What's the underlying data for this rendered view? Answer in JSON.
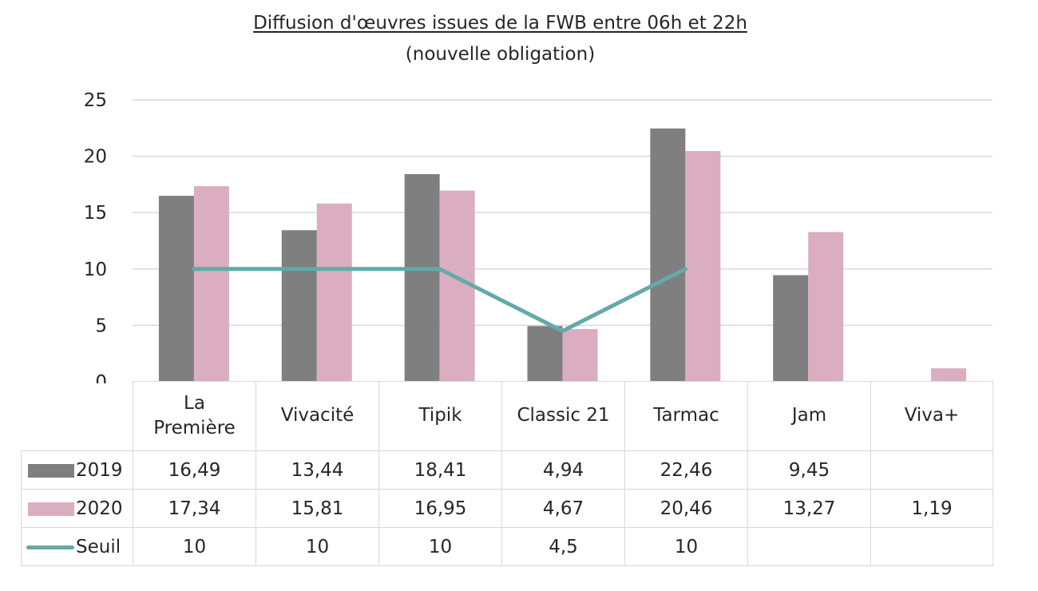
{
  "chart_data": {
    "type": "bar",
    "title": "Diffusion d'œuvres issues de la FWB entre 06h et 22h",
    "subtitle": "(nouvelle obligation)",
    "xlabel": "",
    "ylabel": "",
    "ylim": [
      0,
      25
    ],
    "yticks": [
      "0",
      "5",
      "10",
      "15",
      "20",
      "25"
    ],
    "grid": true,
    "legend": "data-table",
    "categories": [
      "La Première",
      "Vivacité",
      "Tipik",
      "Classic 21",
      "Tarmac",
      "Jam",
      "Viva+"
    ],
    "category_lines": [
      [
        "La",
        "Première"
      ],
      [
        "Vivacité"
      ],
      [
        "Tipik"
      ],
      [
        "Classic 21"
      ],
      [
        "Tarmac"
      ],
      [
        "Jam"
      ],
      [
        "Viva+"
      ]
    ],
    "series": [
      {
        "name": "2019",
        "type": "bar",
        "color": "#7f7f7f",
        "values": [
          16.49,
          13.44,
          18.41,
          4.94,
          22.46,
          9.45,
          null
        ],
        "labels": [
          "16,49",
          "13,44",
          "18,41",
          "4,94",
          "22,46",
          "9,45",
          ""
        ]
      },
      {
        "name": "2020",
        "type": "bar",
        "color": "#dbadc0",
        "values": [
          17.34,
          15.81,
          16.95,
          4.67,
          20.46,
          13.27,
          1.19
        ],
        "labels": [
          "17,34",
          "15,81",
          "16,95",
          "4,67",
          "20,46",
          "13,27",
          "1,19"
        ]
      },
      {
        "name": "Seuil",
        "type": "line",
        "color": "#63aaa8",
        "values": [
          10,
          10,
          10,
          4.5,
          10,
          null,
          null
        ],
        "labels": [
          "10",
          "10",
          "10",
          "4,5",
          "10",
          "",
          ""
        ]
      }
    ]
  }
}
